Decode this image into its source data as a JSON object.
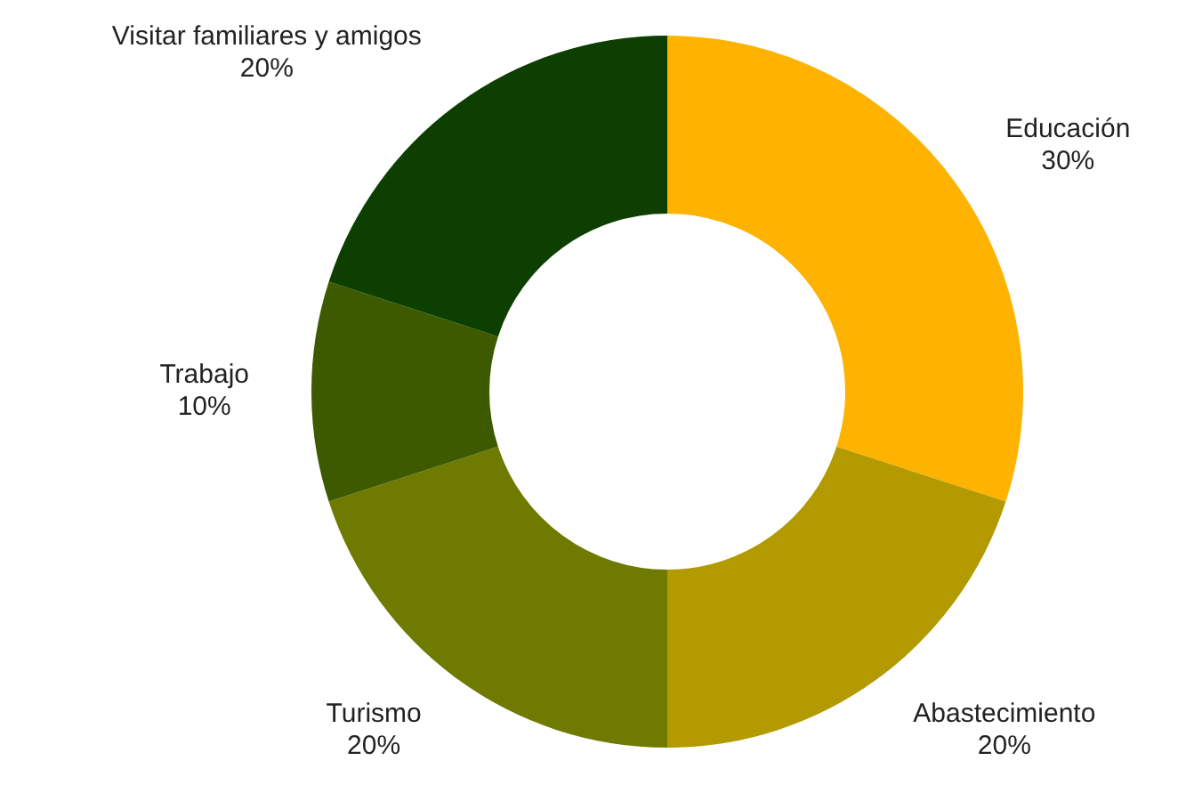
{
  "chart_data": {
    "type": "donut",
    "categories": [
      "Educación",
      "Abastecimiento",
      "Turismo",
      "Trabajo",
      "Visitar familiares y amigos"
    ],
    "values": [
      30,
      20,
      20,
      10,
      20
    ],
    "colors": [
      "#fdb300",
      "#b39a00",
      "#6e7a00",
      "#3d5a00",
      "#0c3f00"
    ],
    "value_labels": [
      "30%",
      "20%",
      "20%",
      "10%",
      "20%"
    ],
    "legend": false
  }
}
